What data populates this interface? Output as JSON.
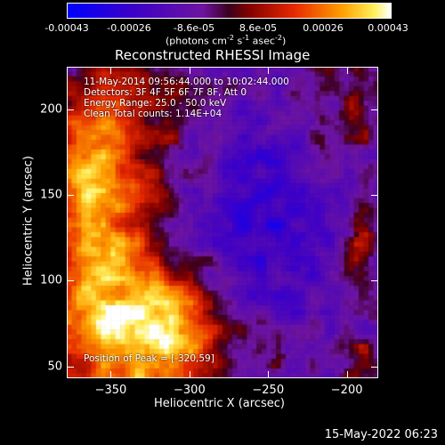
{
  "colorbar": {
    "tick_labels": [
      "-0.00043",
      "-0.00026",
      "-8.6e-05",
      "8.6e-05",
      "0.00026",
      "0.00043"
    ],
    "unit_text": "(photons cm",
    "unit_sup1": "-2",
    "unit_mid": " s",
    "unit_sup2": "-1",
    "unit_end": " asec",
    "unit_sup3": "-2",
    "unit_close": ")"
  },
  "chart_data": {
    "type": "heatmap",
    "title": "Reconstructed RHESSI Image",
    "xlabel": "Heliocentric X (arcsec)",
    "ylabel": "Heliocentric Y (arcsec)",
    "xlim": [
      -378,
      -180
    ],
    "ylim": [
      43,
      225
    ],
    "x_ticks": [
      -350,
      -300,
      -250,
      -200
    ],
    "x_tick_labels": [
      "−350",
      "−300",
      "−250",
      "−200"
    ],
    "y_ticks": [
      50,
      100,
      150,
      200
    ],
    "y_tick_labels": [
      "50",
      "100",
      "150",
      "200"
    ],
    "colorbar_range": [
      -0.00043,
      0.00043
    ],
    "colormap": "blue-purple-red-yellow-white",
    "peak_position": [
      -320,
      59
    ]
  },
  "annotations": {
    "line1": "11-May-2014 09:56:44.000 to 10:02:44.000",
    "line2": "Detectors: 3F 4F 5F 6F 7F 8F, Att 0",
    "line3": "Energy Range: 25.0 - 50.0 keV",
    "line4": "Clean     Total counts: 1.14E+04",
    "peak": "Position of Peak = [-320,59]"
  },
  "footer": {
    "timestamp": "15-May-2022 06:23"
  }
}
